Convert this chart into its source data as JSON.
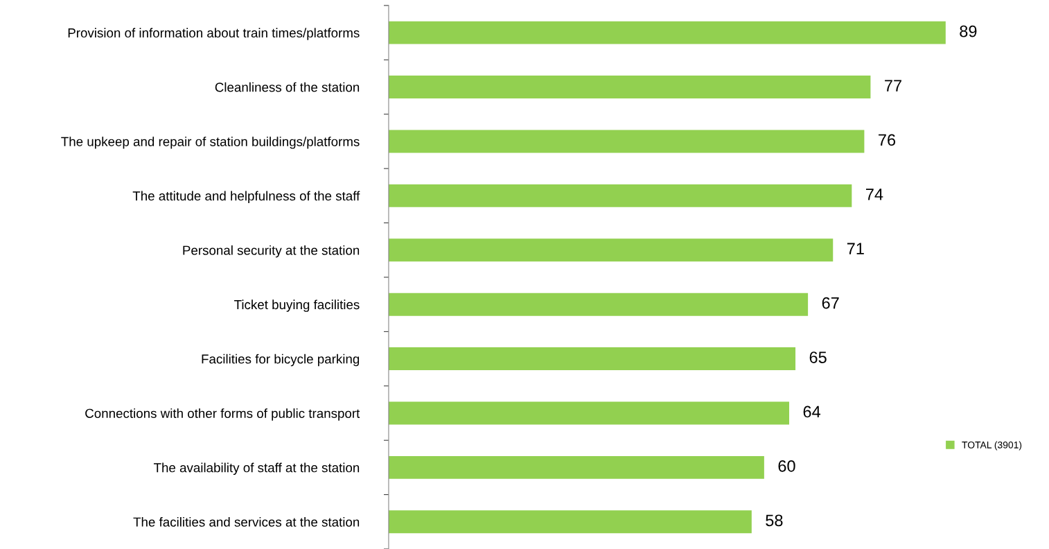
{
  "chart_data": {
    "type": "bar",
    "orientation": "horizontal",
    "categories": [
      "Provision of information about train times/platforms",
      "Cleanliness of the station",
      "The upkeep and repair of station buildings/platforms",
      "The attitude and helpfulness of the staff",
      "Personal security at the station",
      "Ticket buying facilities",
      "Facilities for bicycle parking",
      "Connections with other forms of public transport",
      "The availability of staff at the station",
      "The facilities and services at the station"
    ],
    "series": [
      {
        "name": "TOTAL (3901)",
        "color": "#92d050",
        "values": [
          89,
          77,
          76,
          74,
          71,
          67,
          65,
          64,
          60,
          58
        ]
      }
    ],
    "data_labels": true,
    "legend": "right",
    "grid": false
  }
}
